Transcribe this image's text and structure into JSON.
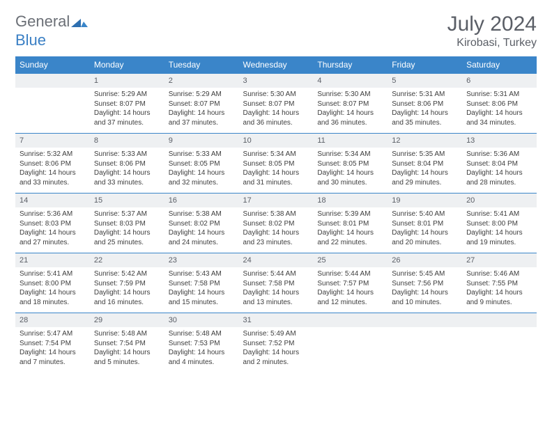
{
  "brand": {
    "part1": "General",
    "part2": "Blue"
  },
  "title": "July 2024",
  "location": "Kirobasi, Turkey",
  "colors": {
    "header_bg": "#3a85c9",
    "header_text": "#ffffff",
    "daynum_bg": "#eef0f2",
    "text": "#5a5e66",
    "border": "#3a85c9"
  },
  "weekdays": [
    "Sunday",
    "Monday",
    "Tuesday",
    "Wednesday",
    "Thursday",
    "Friday",
    "Saturday"
  ],
  "weeks": [
    [
      {
        "blank": true
      },
      {
        "n": "1",
        "sr": "5:29 AM",
        "ss": "8:07 PM",
        "dl": "14 hours and 37 minutes."
      },
      {
        "n": "2",
        "sr": "5:29 AM",
        "ss": "8:07 PM",
        "dl": "14 hours and 37 minutes."
      },
      {
        "n": "3",
        "sr": "5:30 AM",
        "ss": "8:07 PM",
        "dl": "14 hours and 36 minutes."
      },
      {
        "n": "4",
        "sr": "5:30 AM",
        "ss": "8:07 PM",
        "dl": "14 hours and 36 minutes."
      },
      {
        "n": "5",
        "sr": "5:31 AM",
        "ss": "8:06 PM",
        "dl": "14 hours and 35 minutes."
      },
      {
        "n": "6",
        "sr": "5:31 AM",
        "ss": "8:06 PM",
        "dl": "14 hours and 34 minutes."
      }
    ],
    [
      {
        "n": "7",
        "sr": "5:32 AM",
        "ss": "8:06 PM",
        "dl": "14 hours and 33 minutes."
      },
      {
        "n": "8",
        "sr": "5:33 AM",
        "ss": "8:06 PM",
        "dl": "14 hours and 33 minutes."
      },
      {
        "n": "9",
        "sr": "5:33 AM",
        "ss": "8:05 PM",
        "dl": "14 hours and 32 minutes."
      },
      {
        "n": "10",
        "sr": "5:34 AM",
        "ss": "8:05 PM",
        "dl": "14 hours and 31 minutes."
      },
      {
        "n": "11",
        "sr": "5:34 AM",
        "ss": "8:05 PM",
        "dl": "14 hours and 30 minutes."
      },
      {
        "n": "12",
        "sr": "5:35 AM",
        "ss": "8:04 PM",
        "dl": "14 hours and 29 minutes."
      },
      {
        "n": "13",
        "sr": "5:36 AM",
        "ss": "8:04 PM",
        "dl": "14 hours and 28 minutes."
      }
    ],
    [
      {
        "n": "14",
        "sr": "5:36 AM",
        "ss": "8:03 PM",
        "dl": "14 hours and 27 minutes."
      },
      {
        "n": "15",
        "sr": "5:37 AM",
        "ss": "8:03 PM",
        "dl": "14 hours and 25 minutes."
      },
      {
        "n": "16",
        "sr": "5:38 AM",
        "ss": "8:02 PM",
        "dl": "14 hours and 24 minutes."
      },
      {
        "n": "17",
        "sr": "5:38 AM",
        "ss": "8:02 PM",
        "dl": "14 hours and 23 minutes."
      },
      {
        "n": "18",
        "sr": "5:39 AM",
        "ss": "8:01 PM",
        "dl": "14 hours and 22 minutes."
      },
      {
        "n": "19",
        "sr": "5:40 AM",
        "ss": "8:01 PM",
        "dl": "14 hours and 20 minutes."
      },
      {
        "n": "20",
        "sr": "5:41 AM",
        "ss": "8:00 PM",
        "dl": "14 hours and 19 minutes."
      }
    ],
    [
      {
        "n": "21",
        "sr": "5:41 AM",
        "ss": "8:00 PM",
        "dl": "14 hours and 18 minutes."
      },
      {
        "n": "22",
        "sr": "5:42 AM",
        "ss": "7:59 PM",
        "dl": "14 hours and 16 minutes."
      },
      {
        "n": "23",
        "sr": "5:43 AM",
        "ss": "7:58 PM",
        "dl": "14 hours and 15 minutes."
      },
      {
        "n": "24",
        "sr": "5:44 AM",
        "ss": "7:58 PM",
        "dl": "14 hours and 13 minutes."
      },
      {
        "n": "25",
        "sr": "5:44 AM",
        "ss": "7:57 PM",
        "dl": "14 hours and 12 minutes."
      },
      {
        "n": "26",
        "sr": "5:45 AM",
        "ss": "7:56 PM",
        "dl": "14 hours and 10 minutes."
      },
      {
        "n": "27",
        "sr": "5:46 AM",
        "ss": "7:55 PM",
        "dl": "14 hours and 9 minutes."
      }
    ],
    [
      {
        "n": "28",
        "sr": "5:47 AM",
        "ss": "7:54 PM",
        "dl": "14 hours and 7 minutes."
      },
      {
        "n": "29",
        "sr": "5:48 AM",
        "ss": "7:54 PM",
        "dl": "14 hours and 5 minutes."
      },
      {
        "n": "30",
        "sr": "5:48 AM",
        "ss": "7:53 PM",
        "dl": "14 hours and 4 minutes."
      },
      {
        "n": "31",
        "sr": "5:49 AM",
        "ss": "7:52 PM",
        "dl": "14 hours and 2 minutes."
      },
      {
        "blank": true
      },
      {
        "blank": true
      },
      {
        "blank": true
      }
    ]
  ],
  "labels": {
    "sunrise": "Sunrise: ",
    "sunset": "Sunset: ",
    "daylight": "Daylight: "
  }
}
